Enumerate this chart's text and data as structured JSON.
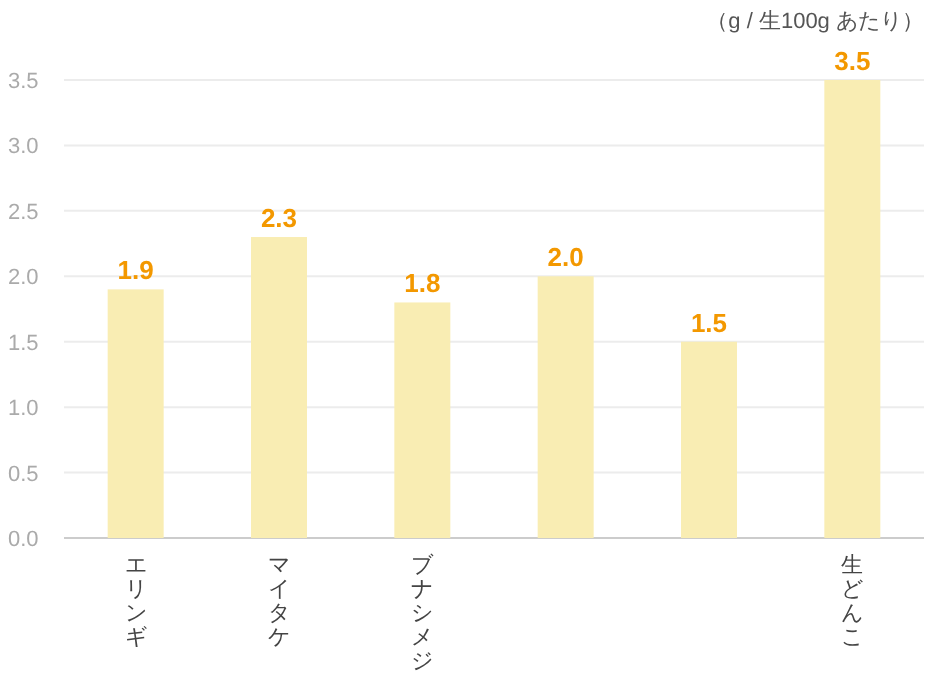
{
  "chart_data": {
    "type": "bar",
    "categories": [
      "エリンギ",
      "マイタケ",
      "ブナシメジ",
      null,
      null,
      "生どんこ"
    ],
    "values": [
      1.9,
      2.3,
      1.8,
      2.0,
      1.5,
      3.5
    ],
    "value_labels": [
      "1.9",
      "2.3",
      "1.8",
      "2.0",
      "1.5",
      "3.5"
    ],
    "color": "#f9edb3",
    "ylim": [
      0,
      3.5
    ],
    "yticks": [
      {
        "value": 0,
        "label": "0.0"
      },
      0.5,
      {
        "value": 1,
        "label": "1.0"
      },
      1.5,
      {
        "value": 2,
        "label": "2.0"
      },
      2.5,
      {
        "value": 3,
        "label": "3.0"
      },
      3.5
    ],
    "grid": "y",
    "annotations": [
      "（g / 生100g あたり）"
    ]
  }
}
